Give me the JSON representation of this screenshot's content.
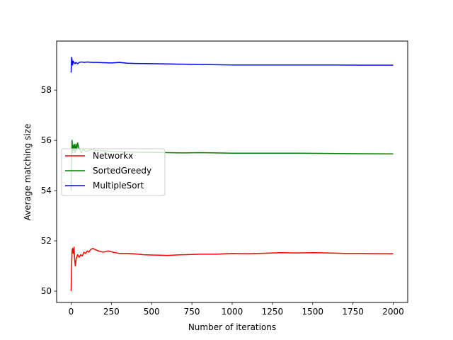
{
  "chart_data": {
    "type": "line",
    "title": "",
    "xlabel": "Number of iterations",
    "ylabel": "Average matching size",
    "xlim": [
      -90,
      2090
    ],
    "ylim": [
      49.55,
      59.95
    ],
    "xticks": [
      0,
      250,
      500,
      750,
      1000,
      1250,
      1500,
      1750,
      2000
    ],
    "yticks": [
      50,
      52,
      54,
      56,
      58
    ],
    "grid": false,
    "legend_position": "center-left",
    "series": [
      {
        "name": "Networkx",
        "color": "#ff0000",
        "points": [
          [
            0,
            50.0
          ],
          [
            3,
            51.0
          ],
          [
            6,
            51.6
          ],
          [
            9,
            51.7
          ],
          [
            13,
            51.5
          ],
          [
            18,
            51.75
          ],
          [
            22,
            51.3
          ],
          [
            26,
            51.0
          ],
          [
            32,
            51.3
          ],
          [
            40,
            51.45
          ],
          [
            50,
            51.35
          ],
          [
            60,
            51.45
          ],
          [
            70,
            51.4
          ],
          [
            80,
            51.55
          ],
          [
            90,
            51.5
          ],
          [
            100,
            51.6
          ],
          [
            110,
            51.55
          ],
          [
            120,
            51.65
          ],
          [
            135,
            51.7
          ],
          [
            150,
            51.65
          ],
          [
            170,
            51.6
          ],
          [
            200,
            51.55
          ],
          [
            230,
            51.6
          ],
          [
            260,
            51.55
          ],
          [
            300,
            51.5
          ],
          [
            350,
            51.5
          ],
          [
            400,
            51.48
          ],
          [
            450,
            51.45
          ],
          [
            500,
            51.44
          ],
          [
            550,
            51.43
          ],
          [
            600,
            51.42
          ],
          [
            650,
            51.44
          ],
          [
            700,
            51.45
          ],
          [
            750,
            51.46
          ],
          [
            800,
            51.47
          ],
          [
            900,
            51.47
          ],
          [
            1000,
            51.5
          ],
          [
            1100,
            51.49
          ],
          [
            1200,
            51.51
          ],
          [
            1300,
            51.53
          ],
          [
            1400,
            51.52
          ],
          [
            1500,
            51.53
          ],
          [
            1600,
            51.52
          ],
          [
            1700,
            51.5
          ],
          [
            1800,
            51.5
          ],
          [
            1900,
            51.49
          ],
          [
            2000,
            51.49
          ]
        ]
      },
      {
        "name": "SortedGreedy",
        "color": "#008000",
        "points": [
          [
            0,
            54.0
          ],
          [
            3,
            55.3
          ],
          [
            6,
            56.0
          ],
          [
            9,
            55.5
          ],
          [
            12,
            55.8
          ],
          [
            16,
            55.6
          ],
          [
            20,
            55.85
          ],
          [
            25,
            55.5
          ],
          [
            30,
            55.85
          ],
          [
            35,
            55.6
          ],
          [
            40,
            55.9
          ],
          [
            48,
            55.7
          ],
          [
            56,
            55.6
          ],
          [
            65,
            55.5
          ],
          [
            75,
            55.65
          ],
          [
            90,
            55.55
          ],
          [
            110,
            55.6
          ],
          [
            130,
            55.65
          ],
          [
            150,
            55.6
          ],
          [
            175,
            55.6
          ],
          [
            200,
            55.58
          ],
          [
            250,
            55.56
          ],
          [
            300,
            55.55
          ],
          [
            400,
            55.53
          ],
          [
            500,
            55.52
          ],
          [
            600,
            55.51
          ],
          [
            700,
            55.5
          ],
          [
            800,
            55.51
          ],
          [
            900,
            55.5
          ],
          [
            1000,
            55.49
          ],
          [
            1200,
            55.49
          ],
          [
            1400,
            55.49
          ],
          [
            1600,
            55.48
          ],
          [
            1800,
            55.47
          ],
          [
            2000,
            55.46
          ]
        ]
      },
      {
        "name": "MultipleSort",
        "color": "#0000ff",
        "points": [
          [
            0,
            58.7
          ],
          [
            3,
            59.3
          ],
          [
            6,
            59.2
          ],
          [
            9,
            59.0
          ],
          [
            13,
            59.15
          ],
          [
            18,
            59.1
          ],
          [
            24,
            59.05
          ],
          [
            30,
            59.1
          ],
          [
            40,
            59.05
          ],
          [
            50,
            59.1
          ],
          [
            65,
            59.12
          ],
          [
            80,
            59.1
          ],
          [
            100,
            59.12
          ],
          [
            130,
            59.1
          ],
          [
            160,
            59.1
          ],
          [
            200,
            59.09
          ],
          [
            250,
            59.08
          ],
          [
            300,
            59.1
          ],
          [
            350,
            59.07
          ],
          [
            400,
            59.06
          ],
          [
            500,
            59.05
          ],
          [
            600,
            59.04
          ],
          [
            700,
            59.03
          ],
          [
            800,
            59.02
          ],
          [
            900,
            59.01
          ],
          [
            1000,
            59.0
          ],
          [
            1200,
            59.0
          ],
          [
            1400,
            59.0
          ],
          [
            1600,
            59.0
          ],
          [
            1800,
            58.99
          ],
          [
            2000,
            58.99
          ]
        ]
      }
    ]
  }
}
